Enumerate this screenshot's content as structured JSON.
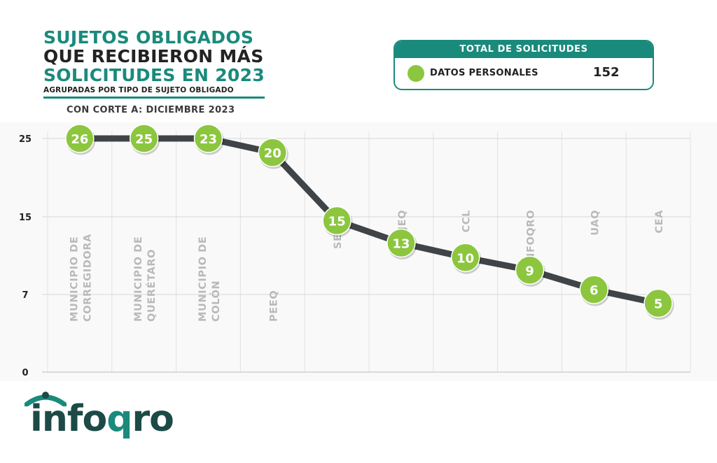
{
  "header": {
    "title_line1": "SUJETOS OBLIGADOS",
    "title_line2": "QUE RECIBIERON MÁS",
    "title_line3": "SOLICITUDES EN 2023",
    "subtitle": "AGRUPADAS POR TIPO DE SUJETO OBLIGADO",
    "cutoff": "CON CORTE A: DICIEMBRE 2023"
  },
  "total_box": {
    "heading": "TOTAL DE SOLICITUDES",
    "legend_label": "DATOS PERSONALES",
    "legend_value": "152"
  },
  "colors": {
    "teal": "#1a8a7c",
    "green": "#8cc63f",
    "line": "#3f4448",
    "category_text": "#b9b9b9"
  },
  "chart_data": {
    "type": "line",
    "categories": [
      [
        "MUNICIPIO DE",
        "CORREGIDORA"
      ],
      [
        "MUNICIPIO DE",
        "QUERÉTARO"
      ],
      [
        "MUNICIPIO DE",
        "COLÓN"
      ],
      [
        "PEEQ"
      ],
      [
        "SESEQ"
      ],
      [
        "PJEQ"
      ],
      [
        "CCL"
      ],
      [
        "INFOQRO"
      ],
      [
        "UAQ"
      ],
      [
        "CEA"
      ]
    ],
    "values": [
      26,
      25,
      23,
      20,
      15,
      13,
      10,
      9,
      6,
      5
    ],
    "plotted_y": [
      25,
      25,
      25,
      23.2,
      14.6,
      12.3,
      10.8,
      9.5,
      7.5,
      6.2
    ],
    "label_position": [
      "bottom",
      "bottom",
      "bottom",
      "bottom",
      "top",
      "top",
      "top",
      "top",
      "top",
      "top"
    ],
    "y_ticks": [
      "25",
      "15",
      "7",
      "0"
    ],
    "y_tick_values": [
      25,
      15,
      7,
      0
    ],
    "ylim": [
      0,
      25
    ],
    "grid": true,
    "legend": "top-right",
    "series_name": "DATOS PERSONALES"
  },
  "logo": {
    "text_pre": "info",
    "text_q": "q",
    "text_post": "ro"
  }
}
